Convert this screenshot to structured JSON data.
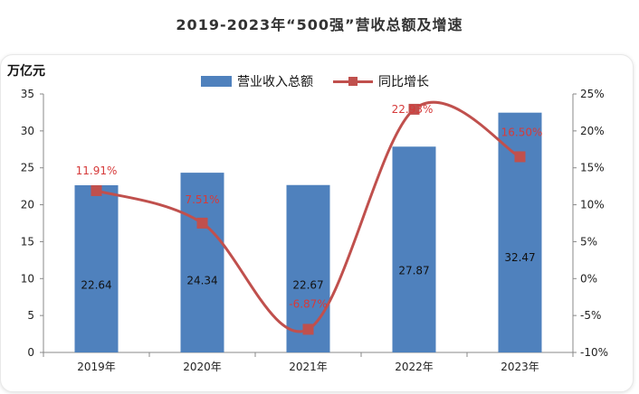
{
  "title": "2019-2023年“500强”营收总额及增速",
  "colors": {
    "bar": "#4f81bd",
    "line": "#c0504d",
    "pct_label": "#d63a3a"
  },
  "chart_data": {
    "type": "bar+line",
    "unit_label": "万亿元",
    "categories": [
      "2019年",
      "2020年",
      "2021年",
      "2022年",
      "2023年"
    ],
    "series": [
      {
        "name": "营业收入总额",
        "type": "bar",
        "axis": "left",
        "values": [
          22.64,
          24.34,
          22.67,
          27.87,
          32.47
        ],
        "labels": [
          "22.64",
          "24.34",
          "22.67",
          "27.87",
          "32.47"
        ]
      },
      {
        "name": "同比增长",
        "type": "line",
        "axis": "right",
        "values": [
          11.91,
          7.51,
          -6.87,
          22.93,
          16.5
        ],
        "labels": [
          "11.91%",
          "7.51%",
          "-6.87%",
          "22.93%",
          "16.50%"
        ]
      }
    ],
    "y_left": {
      "min": 0,
      "max": 35,
      "ticks": [
        "0",
        "5",
        "10",
        "15",
        "20",
        "25",
        "30",
        "35"
      ]
    },
    "y_right": {
      "min": -10,
      "max": 25,
      "ticks": [
        "-10%",
        "-5%",
        "0%",
        "5%",
        "10%",
        "15%",
        "20%",
        "25%"
      ]
    },
    "grid": false,
    "legend_position": "top-center"
  }
}
